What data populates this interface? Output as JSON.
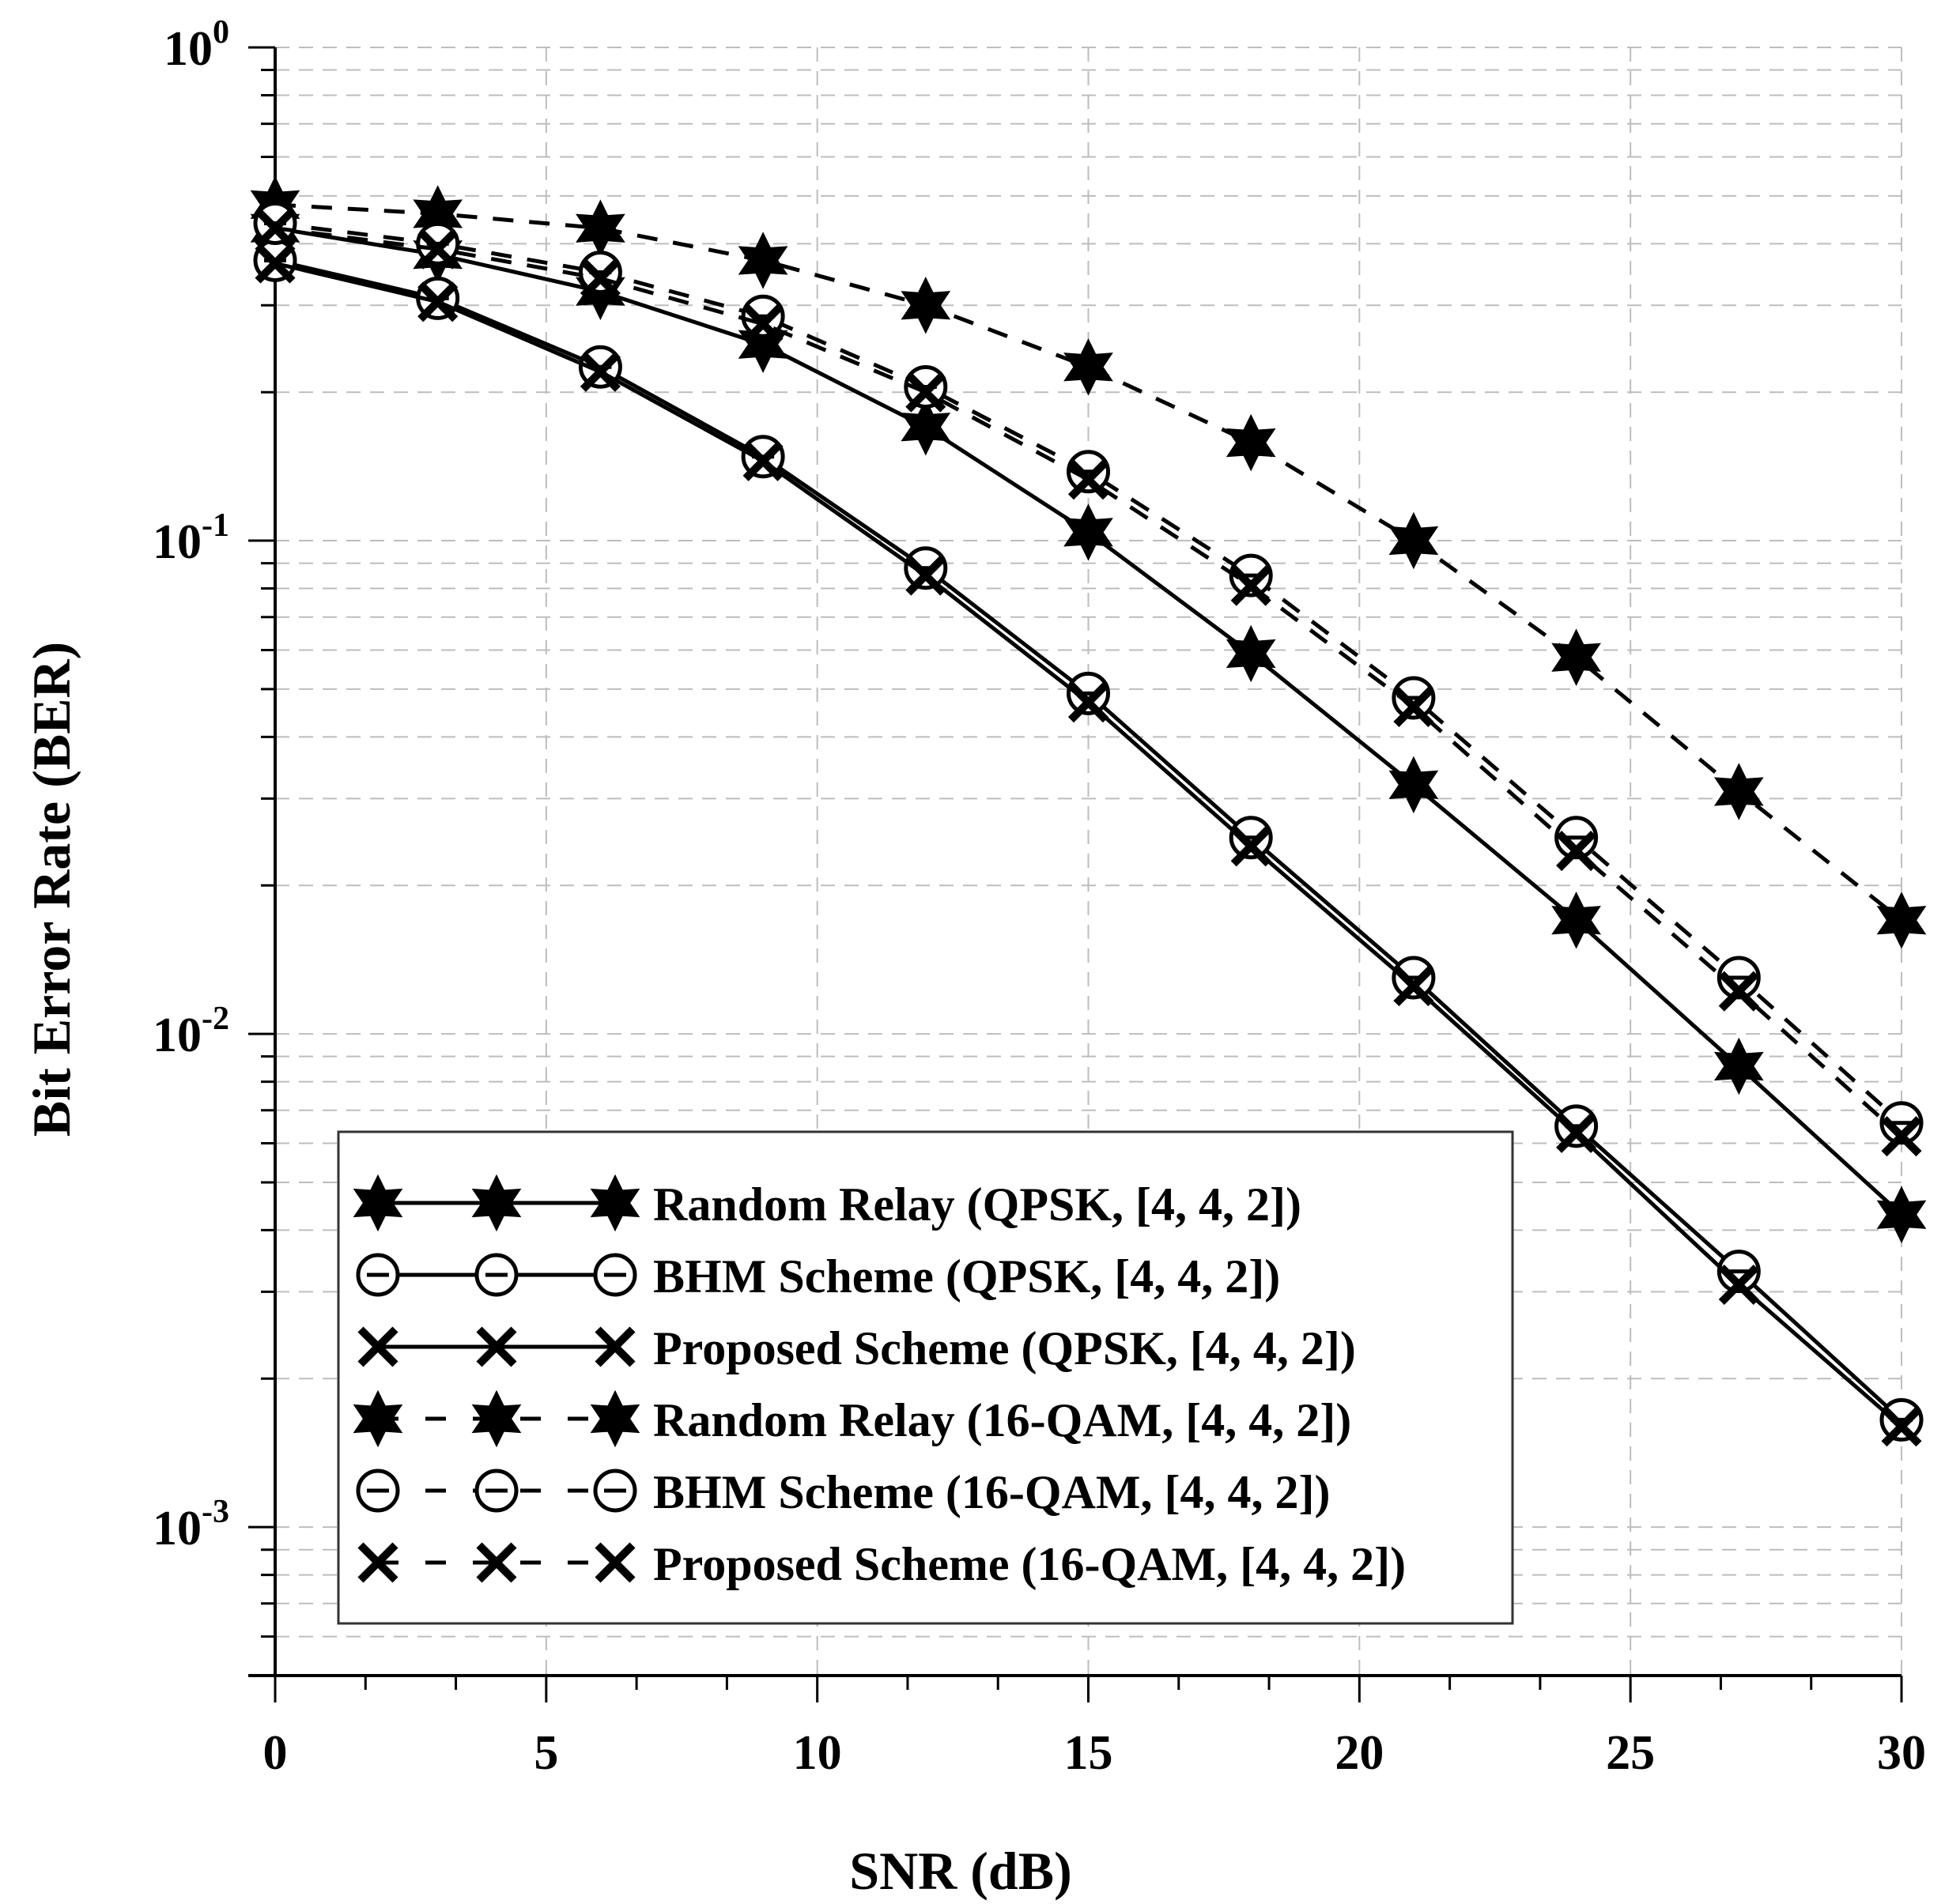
{
  "chart_data": {
    "type": "line",
    "xlabel": "SNR (dB)",
    "ylabel": "Bit Error Rate (BER)",
    "xlim": [
      0,
      30
    ],
    "ylim": [
      0.0005,
      1
    ],
    "yscale": "log",
    "grid": true,
    "legend_position": "bottom-left",
    "x_ticks": [
      "0",
      "5",
      "10",
      "15",
      "20",
      "25",
      "30"
    ],
    "y_ticks": [
      {
        "base": "10",
        "exp": "0",
        "value": 1
      },
      {
        "base": "10",
        "exp": "-1",
        "value": 0.1
      },
      {
        "base": "10",
        "exp": "-2",
        "value": 0.01
      },
      {
        "base": "10",
        "exp": "-3",
        "value": 0.001
      }
    ],
    "x": [
      0,
      3,
      6,
      9,
      12,
      15,
      18,
      21,
      24,
      27,
      30
    ],
    "series": [
      {
        "name": "Random Relay (QPSK, [4, 4, 2])",
        "marker": "star",
        "line": "solid",
        "values": [
          0.43,
          0.38,
          0.32,
          0.25,
          0.17,
          0.104,
          0.059,
          0.032,
          0.017,
          0.0086,
          0.0043
        ]
      },
      {
        "name": "BHM Scheme (QPSK, [4, 4, 2])",
        "marker": "circle",
        "line": "solid",
        "values": [
          0.37,
          0.31,
          0.225,
          0.148,
          0.088,
          0.049,
          0.025,
          0.013,
          0.0065,
          0.0033,
          0.00165
        ]
      },
      {
        "name": "Proposed Scheme (QPSK, [4, 4, 2])",
        "marker": "x",
        "line": "solid",
        "values": [
          0.365,
          0.305,
          0.22,
          0.145,
          0.085,
          0.047,
          0.024,
          0.0125,
          0.0063,
          0.0031,
          0.0016
        ]
      },
      {
        "name": "Random Relay (16-QAM, [4, 4, 2])",
        "marker": "star",
        "line": "dashed",
        "values": [
          0.48,
          0.46,
          0.43,
          0.37,
          0.3,
          0.225,
          0.158,
          0.1,
          0.058,
          0.031,
          0.017
        ]
      },
      {
        "name": "BHM Scheme (16-QAM, [4, 4, 2])",
        "marker": "circle-dash",
        "line": "dashed",
        "values": [
          0.44,
          0.4,
          0.35,
          0.285,
          0.205,
          0.138,
          0.085,
          0.048,
          0.025,
          0.013,
          0.0066
        ]
      },
      {
        "name": "Proposed Scheme (16-QAM, [4, 4, 2])",
        "marker": "x",
        "line": "dashed",
        "values": [
          0.43,
          0.39,
          0.34,
          0.275,
          0.2,
          0.133,
          0.081,
          0.046,
          0.0235,
          0.0122,
          0.0062
        ]
      }
    ]
  }
}
